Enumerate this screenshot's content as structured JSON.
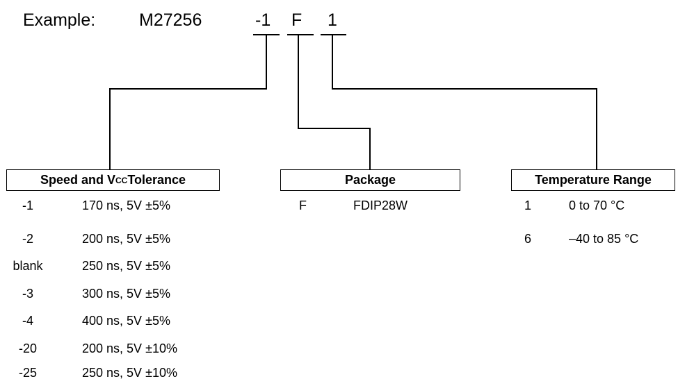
{
  "example": {
    "label": "Example:",
    "part": "M27256",
    "codes": [
      "-1",
      "F",
      "1"
    ]
  },
  "sections": {
    "speed": {
      "title_pre": "Speed and V",
      "title_sub": "CC",
      "title_post": " Tolerance",
      "rows": [
        {
          "code": "-1",
          "desc": "170 ns, 5V ±5%"
        },
        {
          "code": "-2",
          "desc": "200 ns, 5V ±5%"
        },
        {
          "code": "blank",
          "desc": "250 ns, 5V ±5%"
        },
        {
          "code": "-3",
          "desc": "300 ns, 5V ±5%"
        },
        {
          "code": "-4",
          "desc": "400 ns, 5V ±5%"
        },
        {
          "code": "-20",
          "desc": "200 ns, 5V ±10%"
        },
        {
          "code": "-25",
          "desc": "250 ns, 5V ±10%"
        }
      ]
    },
    "package": {
      "title": "Package",
      "rows": [
        {
          "code": "F",
          "desc": "FDIP28W"
        }
      ]
    },
    "temperature": {
      "title": "Temperature Range",
      "rows": [
        {
          "code": "1",
          "desc": "0 to 70 °C"
        },
        {
          "code": "6",
          "desc": "–40 to 85 °C"
        }
      ]
    }
  }
}
